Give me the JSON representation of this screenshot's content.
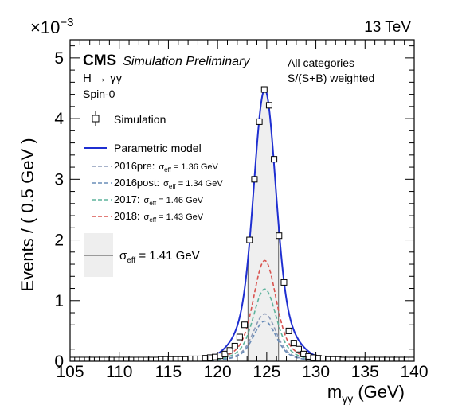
{
  "figure": {
    "energy": "13 TeV",
    "exponent_label": "×10",
    "exponent_power": "−3",
    "experiment": "CMS",
    "status": "Simulation Preliminary",
    "process": "H → γγ",
    "spin": "Spin-0",
    "categories_line1": "All categories",
    "categories_line2": "S/(S+B) weighted"
  },
  "legend": {
    "simulation": "Simulation",
    "model": "Parametric model",
    "sigma_eff_symbol": "σ",
    "sigma_eff_sub": "eff",
    "years": [
      {
        "label": "2016pre:",
        "value": " = 1.36 GeV",
        "color": "#8c9ab8"
      },
      {
        "label": "2016post:",
        "value": " = 1.34 GeV",
        "color": "#6a8db8"
      },
      {
        "label": "2017:",
        "value": " = 1.46 GeV",
        "color": "#5db39c"
      },
      {
        "label": "2018:",
        "value": " = 1.43 GeV",
        "color": "#d9534f"
      }
    ],
    "overall_value": " = 1.41 GeV"
  },
  "chart_data": {
    "type": "line",
    "xlabel": "m",
    "xlabel_sub": "γγ",
    "xlabel_unit": " (GeV)",
    "ylabel": "Events / ( 0.5 GeV )",
    "xlim": [
      105,
      140
    ],
    "ylim": [
      0,
      5.3
    ],
    "y_scale_exponent": -3,
    "x_ticks": [
      105,
      110,
      115,
      120,
      125,
      130,
      135,
      140
    ],
    "y_ticks": [
      0,
      1,
      2,
      3,
      4,
      5
    ],
    "sigma_eff_band": [
      123.1,
      126.2
    ],
    "simulation_points": {
      "x": [
        105.25,
        105.75,
        106.25,
        106.75,
        107.25,
        107.75,
        108.25,
        108.75,
        109.25,
        109.75,
        110.25,
        110.75,
        111.25,
        111.75,
        112.25,
        112.75,
        113.25,
        113.75,
        114.25,
        114.75,
        115.25,
        115.75,
        116.25,
        116.75,
        117.25,
        117.75,
        118.25,
        118.75,
        119.25,
        119.75,
        120.25,
        120.75,
        121.25,
        121.75,
        122.25,
        122.75,
        123.25,
        123.75,
        124.25,
        124.75,
        125.25,
        125.75,
        126.25,
        126.75,
        127.25,
        127.75,
        128.25,
        128.75,
        129.25,
        129.75,
        130.25,
        130.75,
        131.25,
        131.75,
        132.25,
        132.75,
        133.25,
        133.75,
        134.25,
        134.75,
        135.25,
        135.75,
        136.25,
        136.75,
        137.25,
        137.75,
        138.25,
        138.75,
        139.25,
        139.75
      ],
      "y": [
        0.02,
        0.02,
        0.02,
        0.02,
        0.02,
        0.02,
        0.02,
        0.02,
        0.02,
        0.02,
        0.02,
        0.02,
        0.02,
        0.02,
        0.02,
        0.02,
        0.02,
        0.02,
        0.03,
        0.03,
        0.03,
        0.03,
        0.03,
        0.03,
        0.04,
        0.04,
        0.04,
        0.05,
        0.06,
        0.07,
        0.09,
        0.12,
        0.18,
        0.25,
        0.4,
        0.6,
        2.0,
        3.0,
        3.95,
        4.48,
        4.22,
        3.33,
        2.07,
        1.3,
        0.5,
        0.3,
        0.2,
        0.12,
        0.08,
        0.06,
        0.05,
        0.04,
        0.03,
        0.03,
        0.03,
        0.02,
        0.02,
        0.02,
        0.02,
        0.02,
        0.02,
        0.02,
        0.02,
        0.02,
        0.02,
        0.02,
        0.02,
        0.02,
        0.02,
        0.02
      ]
    },
    "series": [
      {
        "name": "Parametric model",
        "peak": 4.48,
        "mean": 124.8,
        "color": "#1f2fd1",
        "style": "solid"
      },
      {
        "name": "2016pre",
        "peak": 0.78,
        "mean": 124.8,
        "color": "#8c9ab8",
        "style": "dashed"
      },
      {
        "name": "2016post",
        "peak": 0.66,
        "mean": 124.8,
        "color": "#6a8db8",
        "style": "dashed"
      },
      {
        "name": "2017",
        "peak": 1.19,
        "mean": 124.8,
        "color": "#5db39c",
        "style": "dashed"
      },
      {
        "name": "2018",
        "peak": 1.66,
        "mean": 124.8,
        "color": "#d9534f",
        "style": "dashed"
      }
    ]
  }
}
